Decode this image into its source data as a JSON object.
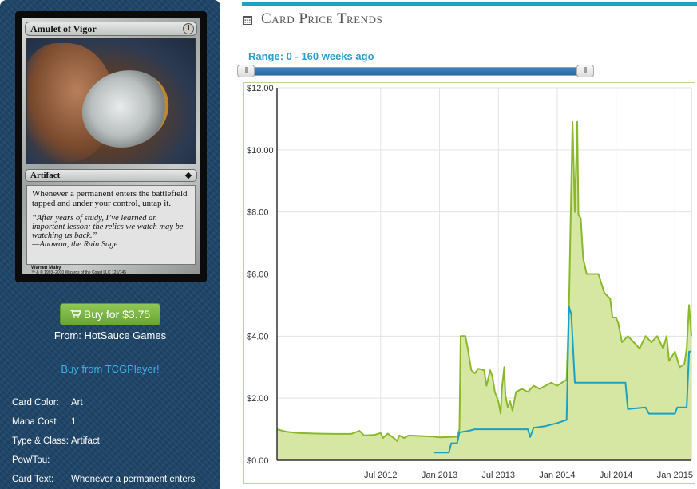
{
  "card": {
    "name": "Amulet of Vigor",
    "mana_symbol": "1",
    "type_line": "Artifact",
    "rules_text": "Whenever a permanent enters the battlefield tapped and under your control, untap it.",
    "flavor_text": "“After years of study, I’ve learned an important lesson: the relics we watch may be watching us back.”\n—Anowon, the Ruin Sage",
    "artist": "Warren Mahy",
    "copyright": "™ & © 1993–2010 Wizards of the Coast LLC 121/145"
  },
  "purchase": {
    "buy_label": "Buy for $3.75",
    "vendor": "From: HotSauce Games",
    "tcg_link": "Buy from TCGPlayer!"
  },
  "attributes": [
    {
      "label": "Card Color:",
      "value": "Art"
    },
    {
      "label": "Mana Cost",
      "value": "1"
    },
    {
      "label": "Type & Class:",
      "value": "Artifact"
    },
    {
      "label": "Pow/Tou:",
      "value": ""
    },
    {
      "label": "Card Text:",
      "value": "Whenever a permanent enters"
    }
  ],
  "header": {
    "title": "Card Price Trends",
    "icon": "calendar-icon",
    "accent_color": "#1aa3c4"
  },
  "range": {
    "label": "Range: 0 - 160 weeks ago",
    "min_weeks": 0,
    "max_weeks": 160
  },
  "chart_data": {
    "type": "line",
    "title": "",
    "xlabel": "",
    "ylabel": "",
    "x_range": [
      2011.62,
      2015.14
    ],
    "y_range": [
      0,
      12
    ],
    "y_ticks": [
      "$0.00",
      "$2.00",
      "$4.00",
      "$6.00",
      "$8.00",
      "$10.00",
      "$12.00"
    ],
    "y_tick_values": [
      0,
      2,
      4,
      6,
      8,
      10,
      12
    ],
    "x_ticks": [
      "Jul 2012",
      "Jan 2013",
      "Jul 2013",
      "Jan 2014",
      "Jul 2014",
      "Jan 2015"
    ],
    "x_tick_values": [
      2012.5,
      2013.0,
      2013.5,
      2014.0,
      2014.5,
      2015.0
    ],
    "grid": true,
    "series": [
      {
        "color": "#8ab82a",
        "fill": "#d6e7a4",
        "points": [
          [
            2011.62,
            1.0
          ],
          [
            2011.7,
            0.92
          ],
          [
            2011.8,
            0.88
          ],
          [
            2011.95,
            0.86
          ],
          [
            2012.1,
            0.85
          ],
          [
            2012.25,
            0.85
          ],
          [
            2012.32,
            0.95
          ],
          [
            2012.36,
            0.8
          ],
          [
            2012.45,
            0.82
          ],
          [
            2012.5,
            0.88
          ],
          [
            2012.52,
            0.72
          ],
          [
            2012.56,
            0.86
          ],
          [
            2012.6,
            0.75
          ],
          [
            2012.62,
            0.7
          ],
          [
            2012.64,
            0.62
          ],
          [
            2012.66,
            0.8
          ],
          [
            2012.7,
            0.72
          ],
          [
            2012.74,
            0.8
          ],
          [
            2012.85,
            0.78
          ],
          [
            2012.95,
            0.76
          ],
          [
            2013.0,
            0.74
          ],
          [
            2013.1,
            0.75
          ],
          [
            2013.15,
            0.76
          ],
          [
            2013.17,
            1.0
          ],
          [
            2013.18,
            4.0
          ],
          [
            2013.22,
            4.0
          ],
          [
            2013.24,
            3.6
          ],
          [
            2013.27,
            2.9
          ],
          [
            2013.3,
            2.8
          ],
          [
            2013.33,
            2.95
          ],
          [
            2013.38,
            2.9
          ],
          [
            2013.4,
            2.4
          ],
          [
            2013.43,
            2.9
          ],
          [
            2013.45,
            2.7
          ],
          [
            2013.47,
            2.2
          ],
          [
            2013.5,
            1.9
          ],
          [
            2013.52,
            1.5
          ],
          [
            2013.53,
            2.3
          ],
          [
            2013.55,
            3.0
          ],
          [
            2013.56,
            2.1
          ],
          [
            2013.58,
            1.7
          ],
          [
            2013.6,
            1.9
          ],
          [
            2013.62,
            1.6
          ],
          [
            2013.65,
            2.2
          ],
          [
            2013.7,
            2.3
          ],
          [
            2013.75,
            2.2
          ],
          [
            2013.8,
            2.4
          ],
          [
            2013.85,
            2.3
          ],
          [
            2013.9,
            2.4
          ],
          [
            2013.95,
            2.5
          ],
          [
            2014.0,
            2.4
          ],
          [
            2014.08,
            2.6
          ],
          [
            2014.1,
            5.0
          ],
          [
            2014.13,
            10.9
          ],
          [
            2014.15,
            8.0
          ],
          [
            2014.17,
            10.9
          ],
          [
            2014.18,
            7.9
          ],
          [
            2014.2,
            7.8
          ],
          [
            2014.22,
            6.5
          ],
          [
            2014.25,
            6.0
          ],
          [
            2014.3,
            6.0
          ],
          [
            2014.35,
            6.0
          ],
          [
            2014.4,
            5.4
          ],
          [
            2014.45,
            5.2
          ],
          [
            2014.47,
            4.6
          ],
          [
            2014.5,
            4.6
          ],
          [
            2014.52,
            4.4
          ],
          [
            2014.55,
            3.8
          ],
          [
            2014.6,
            4.0
          ],
          [
            2014.65,
            3.8
          ],
          [
            2014.7,
            3.6
          ],
          [
            2014.75,
            4.0
          ],
          [
            2014.8,
            3.8
          ],
          [
            2014.85,
            4.0
          ],
          [
            2014.9,
            3.6
          ],
          [
            2014.93,
            4.0
          ],
          [
            2014.95,
            3.2
          ],
          [
            2015.0,
            3.5
          ],
          [
            2015.04,
            3.0
          ],
          [
            2015.08,
            3.1
          ],
          [
            2015.1,
            3.6
          ],
          [
            2015.12,
            5.0
          ],
          [
            2015.14,
            4.0
          ]
        ]
      },
      {
        "color": "#1ba0c6",
        "points": [
          [
            2012.95,
            0.25
          ],
          [
            2013.08,
            0.25
          ],
          [
            2013.1,
            0.55
          ],
          [
            2013.15,
            0.55
          ],
          [
            2013.17,
            0.9
          ],
          [
            2013.25,
            0.95
          ],
          [
            2013.3,
            1.0
          ],
          [
            2013.38,
            1.0
          ],
          [
            2013.45,
            1.0
          ],
          [
            2013.6,
            1.0
          ],
          [
            2013.75,
            1.0
          ],
          [
            2013.77,
            0.75
          ],
          [
            2013.8,
            1.05
          ],
          [
            2013.9,
            1.1
          ],
          [
            2014.0,
            1.2
          ],
          [
            2014.08,
            1.3
          ],
          [
            2014.1,
            4.95
          ],
          [
            2014.12,
            4.7
          ],
          [
            2014.15,
            2.5
          ],
          [
            2014.4,
            2.5
          ],
          [
            2014.58,
            2.5
          ],
          [
            2014.6,
            1.65
          ],
          [
            2014.75,
            1.7
          ],
          [
            2014.78,
            1.5
          ],
          [
            2015.0,
            1.5
          ],
          [
            2015.02,
            1.7
          ],
          [
            2015.1,
            1.7
          ],
          [
            2015.12,
            3.5
          ],
          [
            2015.14,
            3.5
          ]
        ]
      }
    ]
  }
}
